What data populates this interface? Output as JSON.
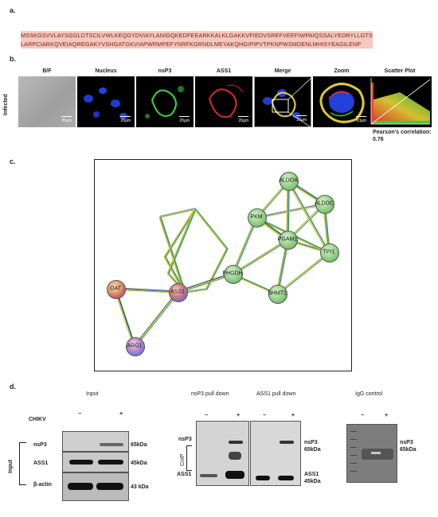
{
  "panel_labels": {
    "a": "a.",
    "b": "b.",
    "c": "c.",
    "d": "d."
  },
  "sequence": {
    "line1": "MSSKGSVVLAYSGGLDTSCILVWLKEQGYDVIAYLANIGQKEDFEEARKKALKLGAKKVFIEDVSREFVEEFIWPAIQSSALYEDRYLLGTS",
    "line2": "LARPCIARKQVEIAQREGAKYVSHGATGKVIAPWRMPEFYNRFKGRNDLMEYAKQHGIPIPVTPKNPWSMDENLMHISYEAGILENP"
  },
  "microscopy": {
    "row_label": "Infected",
    "columns": [
      "B/F",
      "Nucleus",
      "nsP3",
      "ASS1",
      "Merge",
      "Zoom",
      "Scatter Plot"
    ],
    "scales": [
      "20µm",
      "20µm",
      "20µm",
      "20µm",
      "20µm",
      "10µm"
    ],
    "pearson": "Pearson's correlation: 0.76"
  },
  "network": {
    "nodes": [
      "ALDOA",
      "ALDOC",
      "PKM",
      "PGAM1",
      "TPI1",
      "PHGDH",
      "SHMT1",
      "OAT",
      "ASS1",
      "ARG1"
    ]
  },
  "western": {
    "input_title": "Input",
    "nsp3_pd_title": "nsP3 pull down",
    "ass1_pd_title": "ASS1 pull down",
    "igg_title": "IgG control",
    "chikv_label": "CHIKV",
    "minus": "−",
    "plus": "+",
    "input_side": "Input",
    "row_nsp3": "nsP3",
    "row_ass1": "ASS1",
    "row_bactin": "β-actin",
    "kda_65": "65kDa",
    "kda_45": "45kDa",
    "kda_43": "43 kDa",
    "coip_label": "CoIP",
    "coip_nsp3": "nsP3",
    "coip_ass1": "ASS1",
    "ass1_pd_nsp3": "nsP3",
    "ass1_pd_65": "65kDa",
    "ass1_pd_ass1": "ASS1",
    "ass1_pd_45": "45kDa",
    "igg_nsp3": "nsP3",
    "igg_65": "65kDa"
  }
}
